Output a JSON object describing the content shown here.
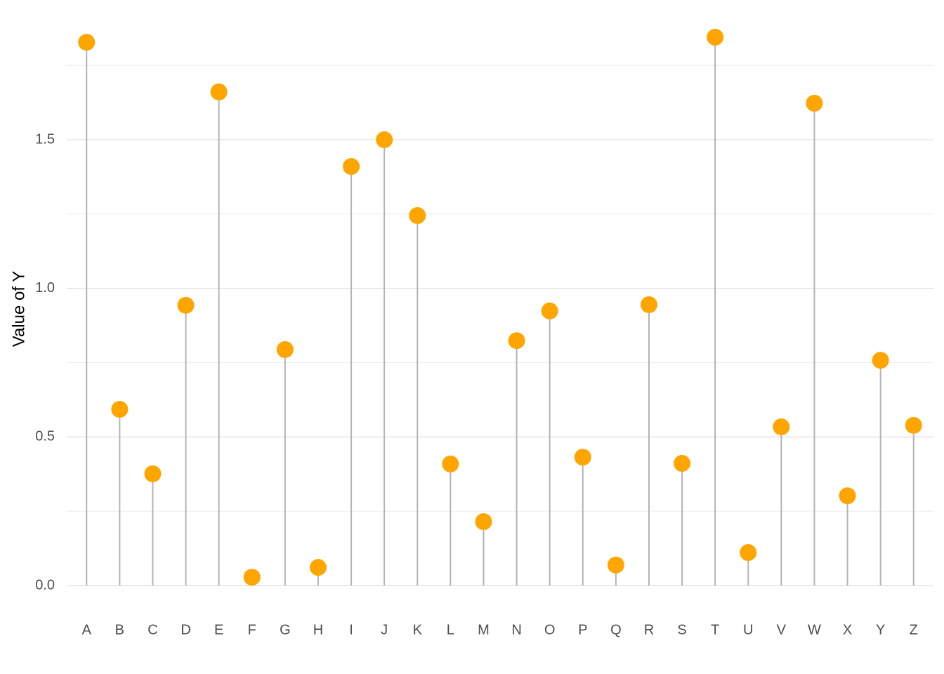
{
  "chart_data": {
    "type": "lollipop",
    "y_label": "Value of Y",
    "categories": [
      "A",
      "B",
      "C",
      "D",
      "E",
      "F",
      "G",
      "H",
      "I",
      "J",
      "K",
      "L",
      "M",
      "N",
      "O",
      "P",
      "Q",
      "R",
      "S",
      "T",
      "U",
      "V",
      "W",
      "X",
      "Y",
      "Z"
    ],
    "values": [
      1.828,
      0.593,
      0.376,
      0.943,
      1.661,
      0.028,
      0.794,
      0.061,
      1.41,
      1.5,
      1.245,
      0.409,
      0.215,
      0.824,
      0.924,
      0.432,
      0.069,
      0.945,
      0.411,
      1.845,
      0.111,
      0.534,
      1.623,
      0.302,
      0.758,
      0.539
    ],
    "color": "#ffa500",
    "stem_color": "#b3b3b3",
    "ylim": [
      -0.09,
      1.93
    ],
    "yticks": [
      {
        "value": 0,
        "label": "0.0"
      },
      0.5,
      {
        "value": 1,
        "label": "1.0"
      },
      1.5
    ],
    "minor_yticks": [
      0.25,
      0.75,
      1.25,
      1.75
    ],
    "grid": true
  }
}
